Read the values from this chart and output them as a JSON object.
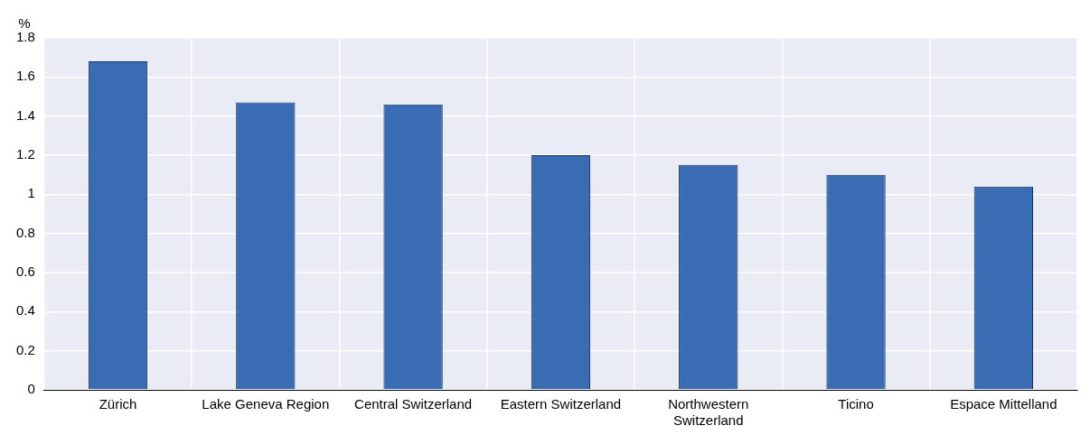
{
  "chart_data": {
    "type": "bar",
    "ylabel": "%",
    "categories": [
      "Zürich",
      "Lake Geneva Region",
      "Central Switzerland",
      "Eastern Switzerland",
      "Northwestern Switzerland",
      "Ticino",
      "Espace Mittelland"
    ],
    "values": [
      1.68,
      1.47,
      1.46,
      1.2,
      1.15,
      1.1,
      1.04
    ],
    "color": "#3a6cb3",
    "ylim": [
      0,
      1.8
    ],
    "yticks": [
      0,
      0.2,
      0.4,
      0.6,
      0.8,
      1,
      1.2,
      1.4,
      1.6,
      1.8
    ],
    "grid": true
  }
}
